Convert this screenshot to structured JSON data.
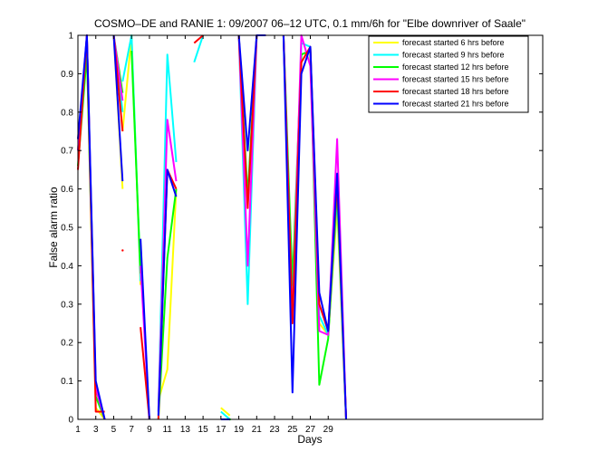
{
  "chart_data": {
    "type": "line",
    "title": "COSMO–DE and RANIE 1: 09/2007 06–12 UTC, 0.1 mm/6h for \"Elbe downriver of Saale\"",
    "xlabel": "Days",
    "ylabel": "False alarm ratio",
    "xlim": [
      1,
      53
    ],
    "ylim": [
      0,
      1
    ],
    "xticks": [
      1,
      3,
      5,
      7,
      9,
      11,
      13,
      15,
      17,
      19,
      21,
      23,
      25,
      27,
      29
    ],
    "yticks": [
      0,
      0.1,
      0.2,
      0.3,
      0.4,
      0.5,
      0.6,
      0.7,
      0.8,
      0.9,
      1
    ],
    "legend_position": "top-right",
    "grid": false,
    "series": [
      {
        "name": "forecast started 6 hrs before",
        "color": "#ffff00",
        "segments": [
          [
            [
              1,
              0.7
            ],
            [
              2,
              0.96
            ],
            [
              3,
              0.03
            ],
            [
              4,
              0.0
            ]
          ],
          [
            [
              5,
              1.0
            ],
            [
              6,
              0.6
            ]
          ],
          [
            [
              6,
              0.75
            ],
            [
              7,
              1.0
            ],
            [
              8,
              0.35
            ]
          ],
          [
            [
              10,
              0.05
            ],
            [
              11,
              0.13
            ],
            [
              12,
              0.6
            ]
          ],
          [
            [
              17,
              0.03
            ],
            [
              18,
              0.01
            ]
          ],
          [
            [
              19,
              1.0
            ],
            [
              20,
              0.56
            ],
            [
              21,
              1.0
            ],
            [
              22,
              1.0
            ]
          ],
          [
            [
              24,
              1.0
            ],
            [
              25,
              0.3
            ],
            [
              26,
              0.95
            ],
            [
              27,
              0.96
            ],
            [
              28,
              0.25
            ],
            [
              29,
              0.22
            ],
            [
              30,
              0.55
            ],
            [
              31,
              0.0
            ]
          ]
        ]
      },
      {
        "name": "forecast started 9 hrs before",
        "color": "#00ffff",
        "segments": [
          [
            [
              1,
              0.7
            ],
            [
              2,
              1.0
            ],
            [
              3,
              0.08
            ],
            [
              4,
              0.0
            ]
          ],
          [
            [
              5,
              1.0
            ],
            [
              6,
              0.8
            ]
          ],
          [
            [
              6,
              0.88
            ],
            [
              7,
              1.0
            ],
            [
              8,
              0.36
            ]
          ],
          [
            [
              10,
              0.02
            ],
            [
              11,
              0.95
            ],
            [
              12,
              0.67
            ]
          ],
          [
            [
              14,
              0.93
            ],
            [
              15,
              1.0
            ]
          ],
          [
            [
              17,
              0.02
            ],
            [
              18,
              0.0
            ]
          ],
          [
            [
              19,
              1.0
            ],
            [
              20,
              0.3
            ],
            [
              21,
              1.0
            ],
            [
              22,
              1.0
            ]
          ],
          [
            [
              24,
              1.0
            ],
            [
              25,
              0.28
            ],
            [
              26,
              0.98
            ],
            [
              27,
              0.97
            ],
            [
              28,
              0.27
            ],
            [
              29,
              0.22
            ],
            [
              30,
              0.58
            ],
            [
              31,
              0.0
            ]
          ]
        ]
      },
      {
        "name": "forecast started 12 hrs before",
        "color": "#00ff00",
        "segments": [
          [
            [
              1,
              0.66
            ],
            [
              2,
              0.95
            ],
            [
              3,
              0.06
            ],
            [
              4,
              0.0
            ]
          ],
          [
            [
              5,
              1.0
            ],
            [
              6,
              0.85
            ]
          ],
          [
            [
              7,
              0.96
            ],
            [
              8,
              0.38
            ]
          ],
          [
            [
              10,
              0.0
            ],
            [
              11,
              0.42
            ],
            [
              12,
              0.6
            ]
          ],
          [
            [
              18,
              0.0
            ]
          ],
          [
            [
              19,
              1.0
            ],
            [
              20,
              0.58
            ],
            [
              21,
              1.0
            ],
            [
              22,
              1.0
            ]
          ],
          [
            [
              24,
              1.0
            ],
            [
              25,
              0.35
            ],
            [
              26,
              0.95
            ],
            [
              27,
              0.96
            ],
            [
              28,
              0.09
            ],
            [
              29,
              0.21
            ],
            [
              30,
              0.6
            ],
            [
              31,
              0.0
            ]
          ]
        ]
      },
      {
        "name": "forecast started 15 hrs before",
        "color": "#ff00ff",
        "segments": [
          [
            [
              1,
              0.7
            ],
            [
              2,
              1.0
            ],
            [
              3,
              0.08
            ],
            [
              4,
              0.0
            ]
          ],
          [
            [
              5,
              1.0
            ],
            [
              6,
              0.83
            ]
          ],
          [
            [
              8,
              0.4
            ],
            [
              9,
              0.0
            ]
          ],
          [
            [
              10,
              0.02
            ],
            [
              11,
              0.78
            ],
            [
              12,
              0.62
            ]
          ],
          [
            [
              19,
              1.0
            ],
            [
              20,
              0.4
            ],
            [
              21,
              1.0
            ],
            [
              22,
              1.0
            ]
          ],
          [
            [
              24,
              1.0
            ],
            [
              25,
              0.26
            ],
            [
              26,
              1.0
            ],
            [
              27,
              0.92
            ],
            [
              28,
              0.23
            ],
            [
              29,
              0.22
            ],
            [
              30,
              0.73
            ],
            [
              31,
              0.0
            ]
          ]
        ]
      },
      {
        "name": "forecast started 18 hrs before",
        "color": "#ff0000",
        "segments": [
          [
            [
              1,
              0.65
            ],
            [
              2,
              1.0
            ],
            [
              3,
              0.02
            ],
            [
              4,
              0.02
            ]
          ],
          [
            [
              5,
              1.0
            ],
            [
              6,
              0.75
            ]
          ],
          [
            [
              6,
              0.44
            ]
          ],
          [
            [
              8,
              0.24
            ],
            [
              9,
              0.0
            ]
          ],
          [
            [
              10,
              0.0
            ],
            [
              11,
              0.65
            ],
            [
              12,
              0.6
            ]
          ],
          [
            [
              14,
              0.98
            ],
            [
              15,
              1.0
            ]
          ],
          [
            [
              19,
              1.0
            ],
            [
              20,
              0.55
            ],
            [
              21,
              1.0
            ],
            [
              22,
              1.0
            ]
          ],
          [
            [
              24,
              1.0
            ],
            [
              25,
              0.25
            ],
            [
              26,
              0.93
            ],
            [
              27,
              0.97
            ],
            [
              28,
              0.3
            ],
            [
              29,
              0.23
            ],
            [
              30,
              0.62
            ],
            [
              31,
              0.0
            ]
          ]
        ]
      },
      {
        "name": "forecast started 21 hrs before",
        "color": "#0000ff",
        "segments": [
          [
            [
              1,
              0.73
            ],
            [
              2,
              1.0
            ],
            [
              3,
              0.1
            ],
            [
              4,
              0.0
            ]
          ],
          [
            [
              5,
              1.0
            ],
            [
              6,
              0.62
            ]
          ],
          [
            [
              8,
              0.47
            ],
            [
              9,
              0.0
            ]
          ],
          [
            [
              10,
              0.01
            ],
            [
              11,
              0.65
            ],
            [
              12,
              0.58
            ]
          ],
          [
            [
              17,
              0.0
            ],
            [
              18,
              0.0
            ]
          ],
          [
            [
              19,
              1.0
            ],
            [
              20,
              0.7
            ],
            [
              21,
              1.0
            ],
            [
              22,
              1.0
            ]
          ],
          [
            [
              24,
              1.0
            ],
            [
              25,
              0.07
            ],
            [
              26,
              0.9
            ],
            [
              27,
              0.97
            ],
            [
              28,
              0.33
            ],
            [
              29,
              0.23
            ],
            [
              30,
              0.64
            ],
            [
              31,
              0.0
            ]
          ]
        ]
      }
    ]
  }
}
